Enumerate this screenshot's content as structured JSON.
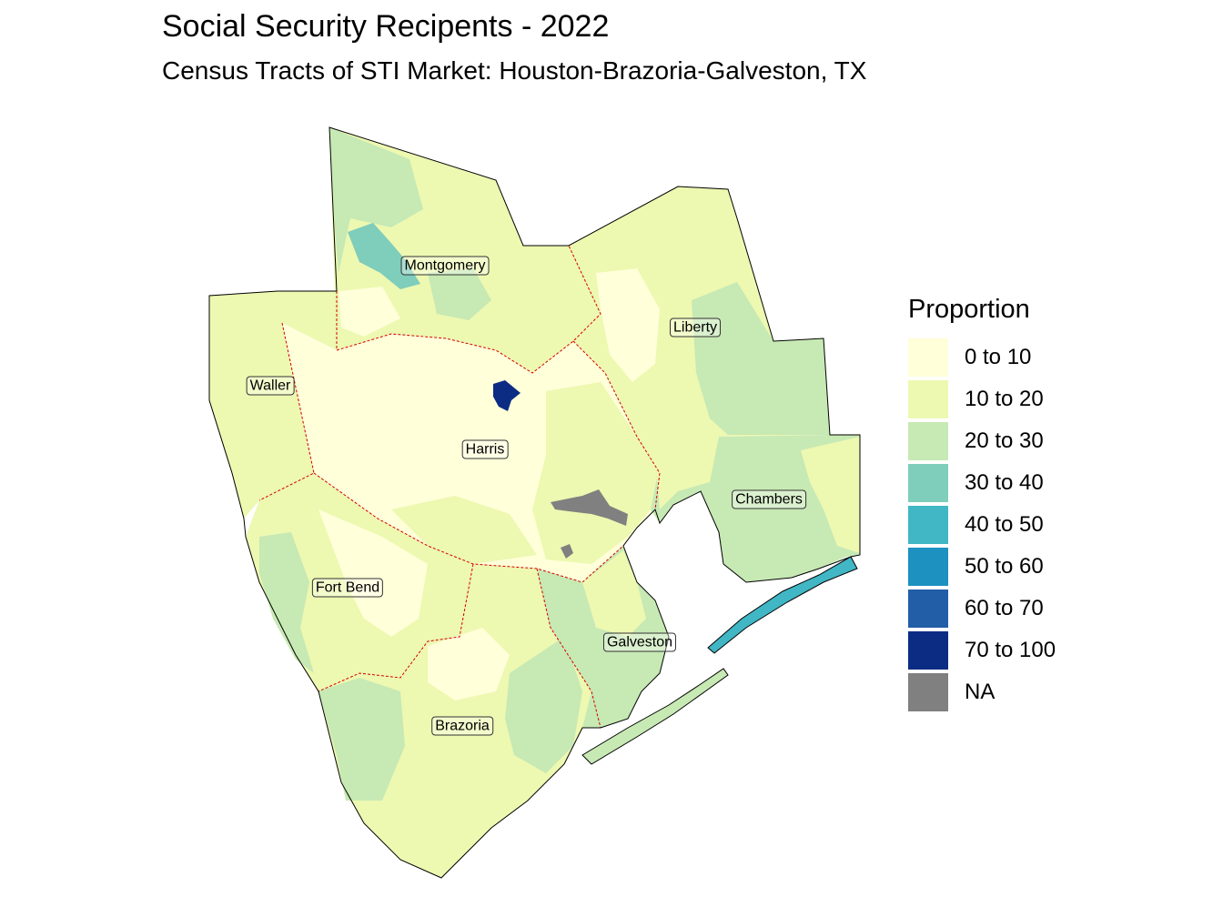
{
  "title": "Social Security Recipents - 2022",
  "subtitle": "Census Tracts of STI Market: Houston-Brazoria-Galveston, TX",
  "legend": {
    "title": "Proportion",
    "items": [
      {
        "label": "0 to 10",
        "color": "#ffffd9"
      },
      {
        "label": "10 to 20",
        "color": "#edf8b1"
      },
      {
        "label": "20 to 30",
        "color": "#c7e9b4"
      },
      {
        "label": "30 to 40",
        "color": "#7fcdbb"
      },
      {
        "label": "40 to 50",
        "color": "#41b6c4"
      },
      {
        "label": "50 to 60",
        "color": "#1d91c0"
      },
      {
        "label": "60 to 70",
        "color": "#225ea8"
      },
      {
        "label": "70 to 100",
        "color": "#0c2c84"
      },
      {
        "label": "NA",
        "color": "#808080"
      }
    ]
  },
  "counties": [
    {
      "name": "Montgomery",
      "class": "10 to 20"
    },
    {
      "name": "Liberty",
      "class": "10 to 20"
    },
    {
      "name": "Waller",
      "class": "10 to 20"
    },
    {
      "name": "Harris",
      "class": "0 to 10"
    },
    {
      "name": "Chambers",
      "class": "20 to 30"
    },
    {
      "name": "Fort Bend",
      "class": "10 to 20"
    },
    {
      "name": "Galveston",
      "class": "20 to 30"
    },
    {
      "name": "Brazoria",
      "class": "10 to 20"
    }
  ]
}
